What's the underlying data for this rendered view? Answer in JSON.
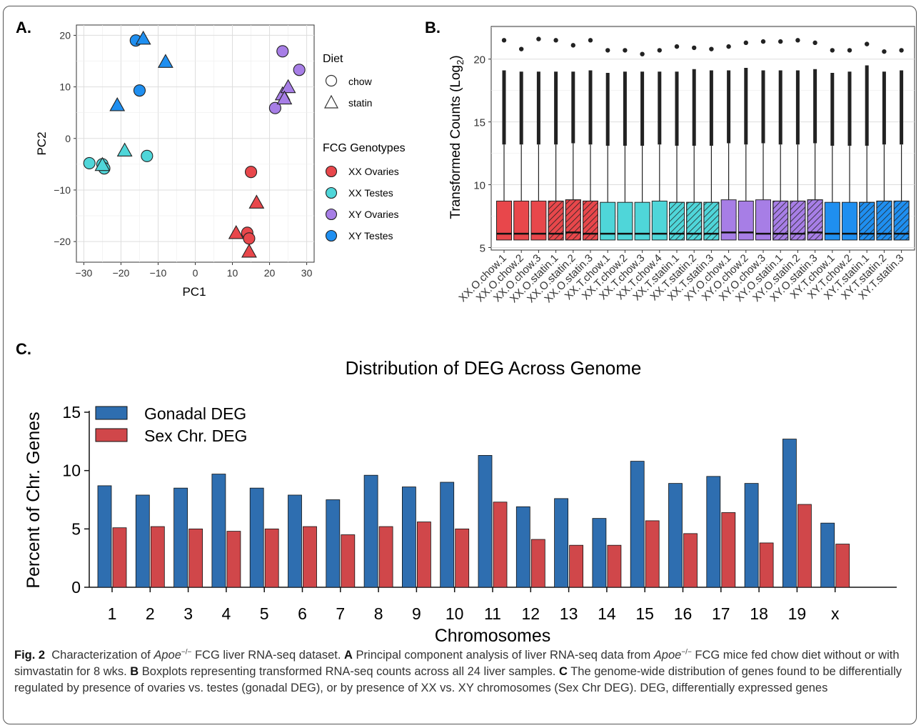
{
  "panels": {
    "a": {
      "label": "A.",
      "chart_data": {
        "type": "scatter",
        "title": "",
        "xlabel": "PC1",
        "ylabel": "PC2",
        "xlim": [
          -32,
          32
        ],
        "ylim": [
          -24,
          22
        ],
        "x_ticks": [
          -30,
          -20,
          -10,
          0,
          10,
          20,
          30
        ],
        "y_ticks": [
          20,
          10,
          0,
          -10,
          -20
        ],
        "x_tick_labels": [
          "−30",
          "−20",
          "−10",
          "0",
          "10",
          "20",
          "30"
        ],
        "y_tick_labels": [
          "20",
          "10",
          "0",
          "−10",
          "−20"
        ],
        "grid": true,
        "legend_position": "right",
        "legend": {
          "diet_title": "Diet",
          "diet": [
            {
              "label": "chow",
              "shape": "circle"
            },
            {
              "label": "statin",
              "shape": "triangle"
            }
          ],
          "genotype_title": "FCG Genotypes",
          "genotypes": [
            {
              "label": "XX Ovaries",
              "color": "#e8474b"
            },
            {
              "label": "XX Testes",
              "color": "#4fd6d9"
            },
            {
              "label": "XY Ovaries",
              "color": "#a77ee6"
            },
            {
              "label": "XY Testes",
              "color": "#1f8ff0"
            }
          ]
        },
        "points": [
          {
            "x": -16,
            "y": 19,
            "group": "XY Testes",
            "diet": "chow"
          },
          {
            "x": -15,
            "y": 9.3,
            "group": "XY Testes",
            "diet": "chow"
          },
          {
            "x": -14,
            "y": 19.3,
            "group": "XY Testes",
            "diet": "statin"
          },
          {
            "x": -8,
            "y": 14.8,
            "group": "XY Testes",
            "diet": "statin"
          },
          {
            "x": -21,
            "y": 6.4,
            "group": "XY Testes",
            "diet": "statin"
          },
          {
            "x": -28.5,
            "y": -4.8,
            "group": "XX Testes",
            "diet": "chow"
          },
          {
            "x": -25,
            "y": -5,
            "group": "XX Testes",
            "diet": "chow"
          },
          {
            "x": -24.5,
            "y": -5.8,
            "group": "XX Testes",
            "diet": "chow"
          },
          {
            "x": -13,
            "y": -3.4,
            "group": "XX Testes",
            "diet": "chow"
          },
          {
            "x": -19,
            "y": -2.4,
            "group": "XX Testes",
            "diet": "statin"
          },
          {
            "x": -25,
            "y": -5.2,
            "group": "XX Testes",
            "diet": "statin"
          },
          {
            "x": 23.5,
            "y": 16.9,
            "group": "XY Ovaries",
            "diet": "chow"
          },
          {
            "x": 28,
            "y": 13.3,
            "group": "XY Ovaries",
            "diet": "chow"
          },
          {
            "x": 21.5,
            "y": 5.9,
            "group": "XY Ovaries",
            "diet": "chow"
          },
          {
            "x": 23.5,
            "y": 8.5,
            "group": "XY Ovaries",
            "diet": "statin"
          },
          {
            "x": 25,
            "y": 9.9,
            "group": "XY Ovaries",
            "diet": "statin"
          },
          {
            "x": 24,
            "y": 7.7,
            "group": "XY Ovaries",
            "diet": "statin"
          },
          {
            "x": 15,
            "y": -6.5,
            "group": "XX Ovaries",
            "diet": "chow"
          },
          {
            "x": 14,
            "y": -18.3,
            "group": "XX Ovaries",
            "diet": "chow"
          },
          {
            "x": 14.5,
            "y": -19.4,
            "group": "XX Ovaries",
            "diet": "chow"
          },
          {
            "x": 16.5,
            "y": -12.5,
            "group": "XX Ovaries",
            "diet": "statin"
          },
          {
            "x": 11,
            "y": -18.4,
            "group": "XX Ovaries",
            "diet": "statin"
          },
          {
            "x": 14.5,
            "y": -22,
            "group": "XX Ovaries",
            "diet": "statin"
          }
        ]
      }
    },
    "b": {
      "label": "B.",
      "chart_data": {
        "type": "box",
        "title": "",
        "ylabel_main": "Transformed Counts (Log",
        "ylabel_sub": "2",
        "ylabel_close": ")",
        "ylim": [
          4.8,
          22.6
        ],
        "y_ticks": [
          5,
          10,
          15,
          20
        ],
        "y_tick_labels": [
          "5",
          "10",
          "15",
          "20"
        ],
        "grid": true,
        "categories": [
          "XX.O.chow.1",
          "XX.O.chow.2",
          "XX.O.chow.3",
          "XX.O.statin.1",
          "XX.O.statin.2",
          "XX.O.statin.3",
          "XX.T.chow.1",
          "XX.T.chow.2",
          "XX.T.chow.3",
          "XX.T.chow.4",
          "XX.T.statin.1",
          "XX.T.statin.2",
          "XX.T.statin.3",
          "XY.O.chow.1",
          "XY.O.chow.2",
          "XY.O.chow.3",
          "XY.O.statin.1",
          "XY.O.statin.2",
          "XY.O.statin.3",
          "XY.T.chow.1",
          "XY.T.chow.2",
          "XY.T.statin.1",
          "XY.T.statin.2",
          "XY.T.statin.3"
        ],
        "colors": [
          "#e8474b",
          "#e8474b",
          "#e8474b",
          "#e8474b",
          "#e8474b",
          "#e8474b",
          "#4fd6d9",
          "#4fd6d9",
          "#4fd6d9",
          "#4fd6d9",
          "#4fd6d9",
          "#4fd6d9",
          "#4fd6d9",
          "#a77ee6",
          "#a77ee6",
          "#a77ee6",
          "#a77ee6",
          "#a77ee6",
          "#a77ee6",
          "#1f8ff0",
          "#1f8ff0",
          "#1f8ff0",
          "#1f8ff0",
          "#1f8ff0"
        ],
        "hatched": [
          false,
          false,
          false,
          true,
          true,
          true,
          false,
          false,
          false,
          false,
          true,
          true,
          true,
          false,
          false,
          false,
          true,
          true,
          true,
          false,
          false,
          true,
          true,
          true
        ],
        "q1": [
          5.6,
          5.6,
          5.6,
          5.6,
          5.6,
          5.6,
          5.6,
          5.6,
          5.6,
          5.6,
          5.6,
          5.6,
          5.6,
          5.6,
          5.6,
          5.6,
          5.6,
          5.6,
          5.6,
          5.6,
          5.6,
          5.6,
          5.6,
          5.6
        ],
        "median": [
          6.1,
          6.1,
          6.1,
          6.1,
          6.2,
          6.1,
          6.1,
          6.1,
          6.1,
          6.1,
          6.1,
          6.1,
          6.1,
          6.2,
          6.2,
          6.1,
          6.1,
          6.1,
          6.2,
          6.1,
          6.1,
          6.1,
          6.1,
          6.1
        ],
        "q3": [
          8.7,
          8.7,
          8.7,
          8.7,
          8.8,
          8.7,
          8.6,
          8.6,
          8.6,
          8.7,
          8.6,
          8.6,
          8.6,
          8.8,
          8.7,
          8.8,
          8.7,
          8.7,
          8.8,
          8.6,
          8.6,
          8.6,
          8.7,
          8.7
        ],
        "whisker_high": [
          13.2,
          13.2,
          13.2,
          13.2,
          13.3,
          13.2,
          13.1,
          13.1,
          13.1,
          13.2,
          13.1,
          13.1,
          13.1,
          13.3,
          13.2,
          13.3,
          13.2,
          13.2,
          13.3,
          13.1,
          13.1,
          13.1,
          13.2,
          13.2
        ],
        "outlier_top": [
          19.1,
          19.0,
          19.0,
          19.0,
          19.0,
          19.1,
          18.9,
          19.0,
          19.0,
          19.0,
          19.0,
          19.2,
          19.1,
          19.1,
          19.3,
          19.1,
          19.1,
          19.1,
          19.2,
          18.9,
          19.0,
          19.5,
          19.0,
          19.1
        ],
        "max": [
          21.5,
          20.8,
          21.6,
          21.5,
          21.1,
          21.5,
          20.7,
          20.7,
          20.4,
          20.7,
          21.0,
          20.9,
          20.8,
          21.0,
          21.3,
          21.4,
          21.4,
          21.5,
          21.3,
          20.7,
          20.7,
          21.2,
          20.6,
          20.7
        ]
      }
    },
    "c": {
      "label": "C.",
      "chart_data": {
        "type": "bar",
        "title": "Distribution of DEG Across Genome",
        "xlabel": "Chromosomes",
        "ylabel": "Percent of Chr. Genes",
        "ylim": [
          0,
          15
        ],
        "y_ticks": [
          0,
          5,
          10,
          15
        ],
        "y_tick_labels": [
          "0",
          "5",
          "10",
          "15"
        ],
        "grid": false,
        "legend_position": "top-left",
        "categories": [
          "1",
          "2",
          "3",
          "4",
          "5",
          "6",
          "7",
          "8",
          "9",
          "10",
          "11",
          "12",
          "13",
          "14",
          "15",
          "16",
          "17",
          "18",
          "19",
          "x"
        ],
        "series": [
          {
            "name": "Gonadal DEG",
            "color": "#2e6eb0",
            "values": [
              8.7,
              7.9,
              8.5,
              9.7,
              8.5,
              7.9,
              7.5,
              9.6,
              8.6,
              9.0,
              11.3,
              6.9,
              7.6,
              5.9,
              10.8,
              8.9,
              9.5,
              8.9,
              12.7,
              5.5
            ]
          },
          {
            "name": "Sex Chr. DEG",
            "color": "#d0474a",
            "values": [
              5.1,
              5.2,
              5.0,
              4.8,
              5.0,
              5.2,
              4.5,
              5.2,
              5.6,
              5.0,
              7.3,
              4.1,
              3.6,
              3.6,
              5.7,
              4.6,
              6.4,
              3.8,
              7.1,
              3.7
            ]
          }
        ]
      }
    }
  },
  "caption": {
    "fig_label": "Fig. 2",
    "t1": "Characterization of ",
    "gene": "Apoe",
    "sup": "−/−",
    "t2": " FCG liver RNA-seq dataset. ",
    "a_label": "A",
    "t3": " Principal component analysis of liver RNA-seq data from ",
    "t4": " FCG mice fed chow diet without or with simvastatin for 8 wks. ",
    "b_label": "B",
    "t5": " Boxplots representing transformed RNA-seq counts across all 24 liver samples. ",
    "c_label": "C",
    "t6": " The genome-wide distribution of genes found to be differentially regulated by presence of ovaries vs. testes (gonadal DEG), or by presence of XX vs. XY chromosomes (Sex Chr DEG). DEG, differentially expressed genes"
  }
}
